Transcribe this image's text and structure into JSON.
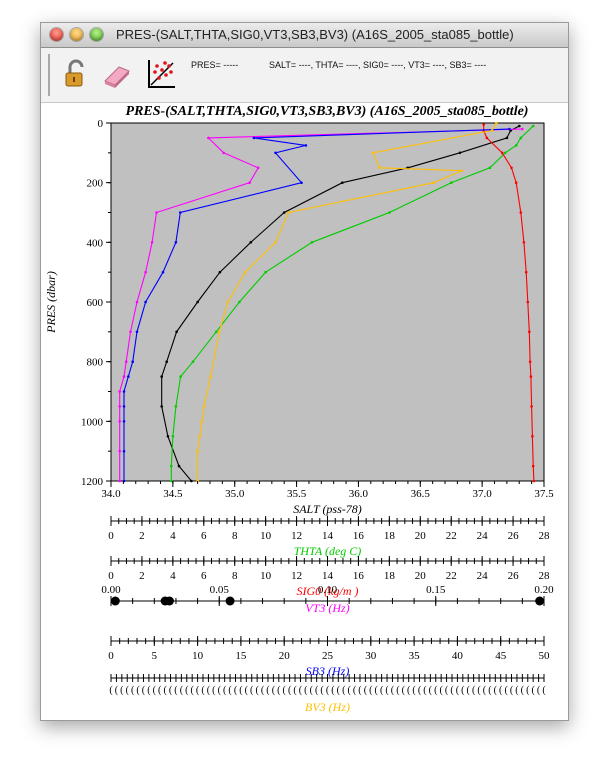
{
  "window": {
    "title": "PRES-(SALT,THTA,SIG0,VT3,SB3,BV3) (A16S_2005_sta085_bottle)"
  },
  "toolbar": {
    "buttons": [
      {
        "name": "lock-icon"
      },
      {
        "name": "eraser-icon"
      },
      {
        "name": "scatter-plot-icon"
      }
    ],
    "readout_pres": "PRES= -----",
    "readout_rest": "SALT= ----, THTA= ----, SIG0= ----, VT3= ----, SB3= ----"
  },
  "colors": {
    "SALT": "#000000",
    "THTA": "#00cc00",
    "SIG0": "#ff0000",
    "VT3": "#ff00ff",
    "SB3": "#0000ff",
    "BV3": "#ffbf00",
    "plot_bg": "#c0c0c0"
  },
  "chart_data": {
    "type": "line",
    "title": "PRES-(SALT,THTA,SIG0,VT3,SB3,BV3) (A16S_2005_sta085_bottle)",
    "ylabel": "PRES (dbar)",
    "ylim": [
      0,
      1200
    ],
    "y_inverted": true,
    "y_ticks": [
      "0",
      "200",
      "400",
      "600",
      "800",
      "1000",
      "1200"
    ],
    "axes": [
      {
        "key": "SALT",
        "label": "SALT (pss-78)",
        "range": [
          34.0,
          37.5
        ],
        "ticks": [
          "34.0",
          "34.5",
          "35.0",
          "35.5",
          "36.0",
          "36.5",
          "37.0",
          "37.5"
        ],
        "tick_values": [
          34.0,
          34.5,
          35.0,
          35.5,
          36.0,
          36.5,
          37.0,
          37.5
        ]
      },
      {
        "key": "THTA",
        "label": "THTA (deg C)",
        "range": [
          0,
          28
        ],
        "ticks": [
          "0",
          "2",
          "4",
          "6",
          "8",
          "10",
          "12",
          "14",
          "16",
          "18",
          "20",
          "22",
          "24",
          "26",
          "28"
        ],
        "tick_values": [
          0,
          2,
          4,
          6,
          8,
          10,
          12,
          14,
          16,
          18,
          20,
          22,
          24,
          26,
          28
        ]
      },
      {
        "key": "SIG0",
        "label": "SIG0 (kg/m )",
        "range": [
          0,
          28
        ],
        "ticks": [
          "0",
          "2",
          "4",
          "6",
          "8",
          "10",
          "12",
          "14",
          "16",
          "18",
          "20",
          "22",
          "24",
          "26",
          "28"
        ],
        "tick_values": [
          0,
          2,
          4,
          6,
          8,
          10,
          12,
          14,
          16,
          18,
          20,
          22,
          24,
          26,
          28
        ]
      },
      {
        "key": "VT3",
        "label": "VT3 (Hz)",
        "range": [
          0,
          0.2
        ],
        "ticks": [
          "0.00",
          "0.05",
          "0.10",
          "0.15",
          "0.20"
        ],
        "tick_values": [
          0,
          0.05,
          0.1,
          0.15,
          0.2
        ]
      },
      {
        "key": "SB3",
        "label": "SB3 (Hz)",
        "range": [
          0,
          50
        ],
        "ticks": [
          "0",
          "5",
          "10",
          "15",
          "20",
          "25",
          "30",
          "35",
          "40",
          "45",
          "50"
        ],
        "tick_values": [
          0,
          5,
          10,
          15,
          20,
          25,
          30,
          35,
          40,
          45,
          50
        ]
      },
      {
        "key": "BV3",
        "label": "BV3 (Hz)",
        "range": [
          0,
          1
        ],
        "ticks": [
          "(",
          "(",
          "(",
          "(",
          "(",
          "(",
          "(",
          "(",
          "(",
          "(",
          "(",
          "(",
          "(",
          "(",
          "(",
          "(",
          "(",
          "(",
          "(",
          "(",
          "(",
          "(",
          "(",
          "(",
          "(",
          "(",
          "(",
          "(",
          "(",
          "(",
          "(",
          "(",
          "(",
          "(",
          "(",
          "(",
          "(",
          "(",
          "(",
          "(",
          "(",
          "(",
          "(",
          "(",
          "(",
          "(",
          "(",
          "(",
          "(",
          "(",
          "(",
          "(",
          "(",
          "(",
          "(",
          "(",
          "(",
          "(",
          "(",
          "(",
          "(",
          "(",
          "(",
          "(",
          "(",
          "(",
          "(",
          "(",
          "(",
          "(",
          "(",
          "(",
          "(",
          "(",
          "(",
          "(",
          "(",
          "(",
          "(",
          "(",
          "("
        ],
        "tick_values": []
      }
    ],
    "series": [
      {
        "name": "SALT",
        "color": "#000000",
        "x": [
          37.3,
          37.23,
          37.2,
          36.82,
          36.4,
          35.87,
          35.4,
          35.13,
          34.88,
          34.7,
          34.53,
          34.45,
          34.41,
          34.41,
          34.46,
          34.55,
          34.65
        ],
        "y": [
          10,
          25,
          50,
          100,
          150,
          200,
          300,
          400,
          500,
          600,
          700,
          800,
          850,
          950,
          1050,
          1150,
          1200
        ]
      },
      {
        "name": "THTA",
        "color": "#00cc00",
        "x": [
          27.3,
          26.5,
          26.2,
          25.5,
          24.5,
          22.0,
          18.0,
          13.0,
          10.0,
          8.3,
          6.8,
          5.3,
          4.5,
          4.2,
          4.0,
          3.9,
          3.9
        ],
        "y": [
          10,
          50,
          75,
          100,
          150,
          200,
          300,
          400,
          500,
          600,
          700,
          800,
          850,
          950,
          1050,
          1150,
          1200
        ]
      },
      {
        "name": "SIG0",
        "color": "#ff0000",
        "x": [
          24.1,
          24.1,
          24.3,
          25.3,
          25.9,
          26.2,
          26.5,
          26.7,
          26.85,
          26.95,
          27.05,
          27.1,
          27.15,
          27.2,
          27.25,
          27.3,
          27.35
        ],
        "y": [
          5,
          25,
          50,
          100,
          150,
          200,
          300,
          400,
          500,
          600,
          700,
          800,
          850,
          950,
          1050,
          1150,
          1200
        ]
      },
      {
        "name": "VT3",
        "color": "#ff00ff",
        "x": [
          0.19,
          0.045,
          0.052,
          0.068,
          0.064,
          0.021,
          0.019,
          0.016,
          0.012,
          0.009,
          0.007,
          0.006,
          0.004,
          0.004,
          0.004,
          0.004,
          0.004
        ],
        "y": [
          20,
          50,
          100,
          150,
          200,
          300,
          400,
          500,
          600,
          700,
          800,
          850,
          900,
          950,
          1000,
          1100,
          1200
        ]
      },
      {
        "name": "SB3",
        "color": "#0000ff",
        "x": [
          46.0,
          16.5,
          22.5,
          19.0,
          22.0,
          8.0,
          7.5,
          6.0,
          4.0,
          3.0,
          2.5,
          2.0,
          1.5,
          1.5,
          1.5,
          1.5,
          1.5
        ],
        "y": [
          20,
          50,
          75,
          100,
          200,
          300,
          400,
          500,
          600,
          700,
          800,
          850,
          900,
          950,
          1000,
          1100,
          1200
        ]
      },
      {
        "name": "BV3",
        "color": "#ffbf00",
        "x": [
          0.89,
          0.88,
          0.605,
          0.62,
          0.81,
          0.745,
          0.41,
          0.38,
          0.31,
          0.27,
          0.25,
          0.23,
          0.215,
          0.21,
          0.205,
          0.2,
          0.2
        ],
        "y": [
          0,
          25,
          100,
          150,
          160,
          200,
          300,
          400,
          500,
          600,
          700,
          850,
          950,
          1000,
          1050,
          1100,
          1200
        ]
      }
    ]
  }
}
